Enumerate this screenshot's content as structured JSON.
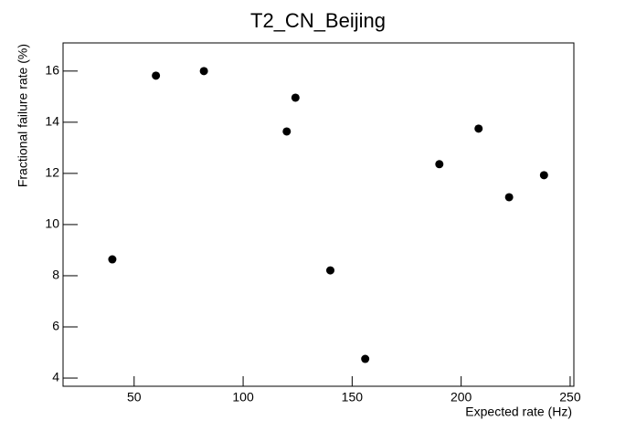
{
  "chart_data": {
    "type": "scatter",
    "title": "T2_CN_Beijing",
    "x_label": "Expected rate (Hz)",
    "y_label": "Fractional failure rate (%)",
    "x": [
      40,
      60,
      82,
      120,
      124,
      140,
      156,
      190,
      208,
      222,
      238
    ],
    "values": [
      8.64,
      15.82,
      16.0,
      13.64,
      14.96,
      8.21,
      4.75,
      12.36,
      13.75,
      11.07,
      11.93
    ],
    "color": "#000000",
    "xlim": [
      17.4,
      251.7
    ],
    "xticks": [
      50,
      100,
      150,
      200,
      250
    ],
    "ylim": [
      3.68,
      17.1
    ],
    "yticks": [
      4,
      6,
      8,
      10,
      12,
      14,
      16
    ],
    "grid": false
  }
}
